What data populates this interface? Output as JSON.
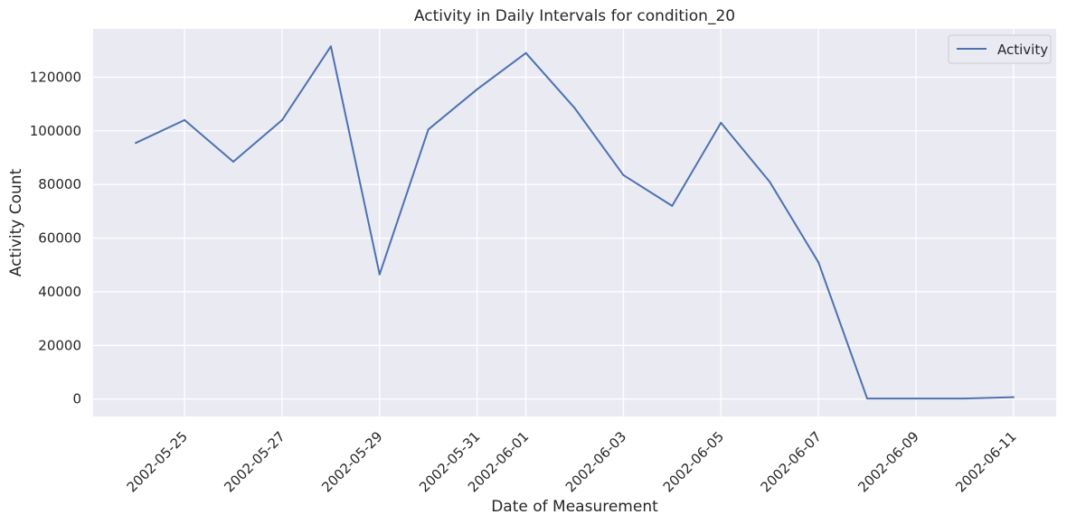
{
  "chart_data": {
    "type": "line",
    "title": "Activity in Daily Intervals for condition_20",
    "xlabel": "Date of Measurement",
    "ylabel": "Activity Count",
    "x": [
      "2002-05-24",
      "2002-05-25",
      "2002-05-26",
      "2002-05-27",
      "2002-05-28",
      "2002-05-29",
      "2002-05-30",
      "2002-05-31",
      "2002-06-01",
      "2002-06-02",
      "2002-06-03",
      "2002-06-04",
      "2002-06-05",
      "2002-06-06",
      "2002-06-07",
      "2002-06-08",
      "2002-06-09",
      "2002-06-10",
      "2002-06-11"
    ],
    "series": [
      {
        "name": "Activity",
        "color": "#4c72b0",
        "values": [
          95500,
          104000,
          88500,
          104000,
          131500,
          46500,
          100500,
          115500,
          129000,
          108500,
          83500,
          72000,
          103000,
          81000,
          51000,
          200,
          200,
          200,
          700
        ]
      }
    ],
    "xticks": [
      "2002-05-25",
      "2002-05-27",
      "2002-05-29",
      "2002-05-31",
      "2002-06-01",
      "2002-06-03",
      "2002-06-05",
      "2002-06-07",
      "2002-06-09",
      "2002-06-11"
    ],
    "yticks": [
      0,
      20000,
      40000,
      60000,
      80000,
      100000,
      120000
    ],
    "ylim": [
      -6500,
      138000
    ],
    "xlim": [
      "2002-05-23T03:00",
      "2002-06-11T21:00"
    ],
    "grid": true,
    "legend": "top-right",
    "colors": {
      "background": "#eaeaf2",
      "grid": "#ffffff",
      "text": "#262626"
    }
  }
}
